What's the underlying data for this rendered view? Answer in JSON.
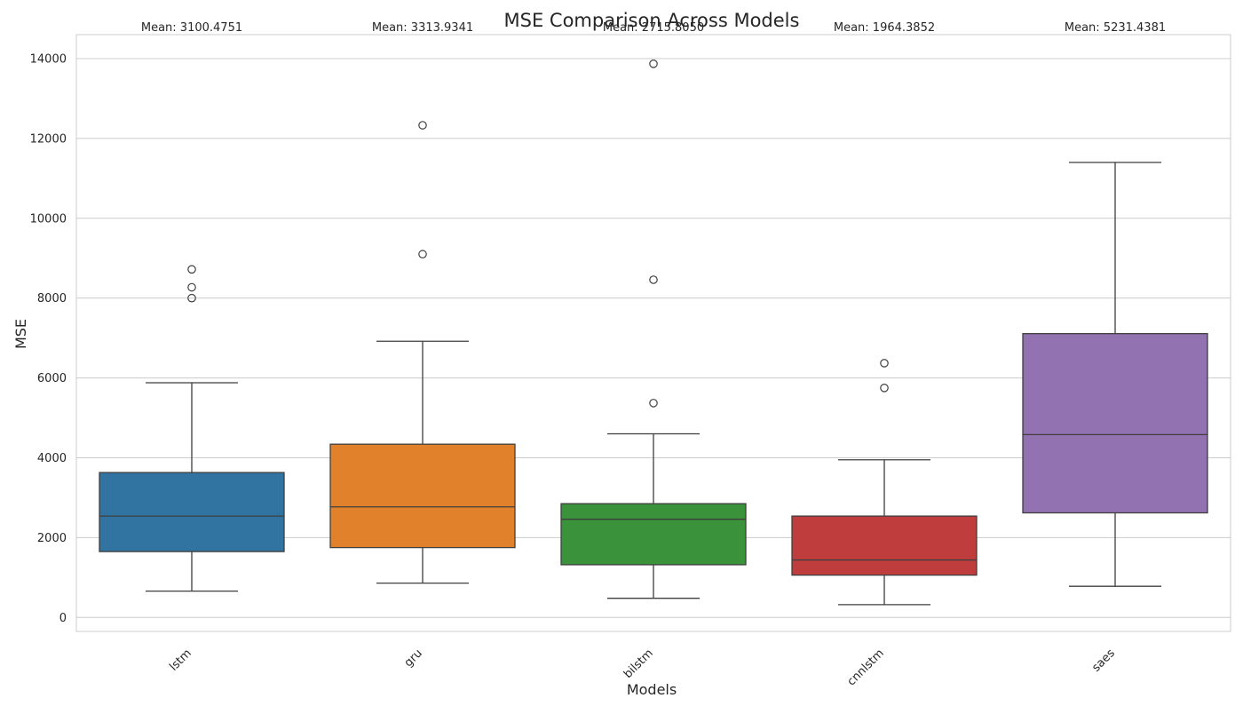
{
  "chart_data": {
    "type": "box",
    "title": "MSE Comparison Across Models",
    "xlabel": "Models",
    "ylabel": "MSE",
    "ylim": [
      -350,
      14600
    ],
    "yticks": [
      0,
      2000,
      4000,
      6000,
      8000,
      10000,
      12000,
      14000
    ],
    "grid": true,
    "categories": [
      "lstm",
      "gru",
      "bilstm",
      "cnnlstm",
      "saes"
    ],
    "series": [
      {
        "category": "lstm",
        "color": "#3274a1",
        "mean_label": "Mean: 3100.4751",
        "whisker_low": 660,
        "q1": 1650,
        "median": 2540,
        "q3": 3630,
        "whisker_high": 5880,
        "outliers": [
          8000,
          8270,
          8720
        ]
      },
      {
        "category": "gru",
        "color": "#e1812c",
        "mean_label": "Mean: 3313.9341",
        "whisker_low": 860,
        "q1": 1750,
        "median": 2770,
        "q3": 4340,
        "whisker_high": 6920,
        "outliers": [
          9100,
          12330
        ]
      },
      {
        "category": "bilstm",
        "color": "#3a923a",
        "mean_label": "Mean: 2715.8050",
        "whisker_low": 480,
        "q1": 1320,
        "median": 2460,
        "q3": 2850,
        "whisker_high": 4600,
        "outliers": [
          5370,
          8460,
          13870
        ]
      },
      {
        "category": "cnnlstm",
        "color": "#c03d3e",
        "mean_label": "Mean: 1964.3852",
        "whisker_low": 320,
        "q1": 1060,
        "median": 1440,
        "q3": 2540,
        "whisker_high": 3950,
        "outliers": [
          5750,
          6370
        ]
      },
      {
        "category": "saes",
        "color": "#9372b2",
        "mean_label": "Mean: 5231.4381",
        "whisker_low": 780,
        "q1": 2620,
        "median": 4580,
        "q3": 7110,
        "whisker_high": 11400,
        "outliers": []
      }
    ]
  }
}
